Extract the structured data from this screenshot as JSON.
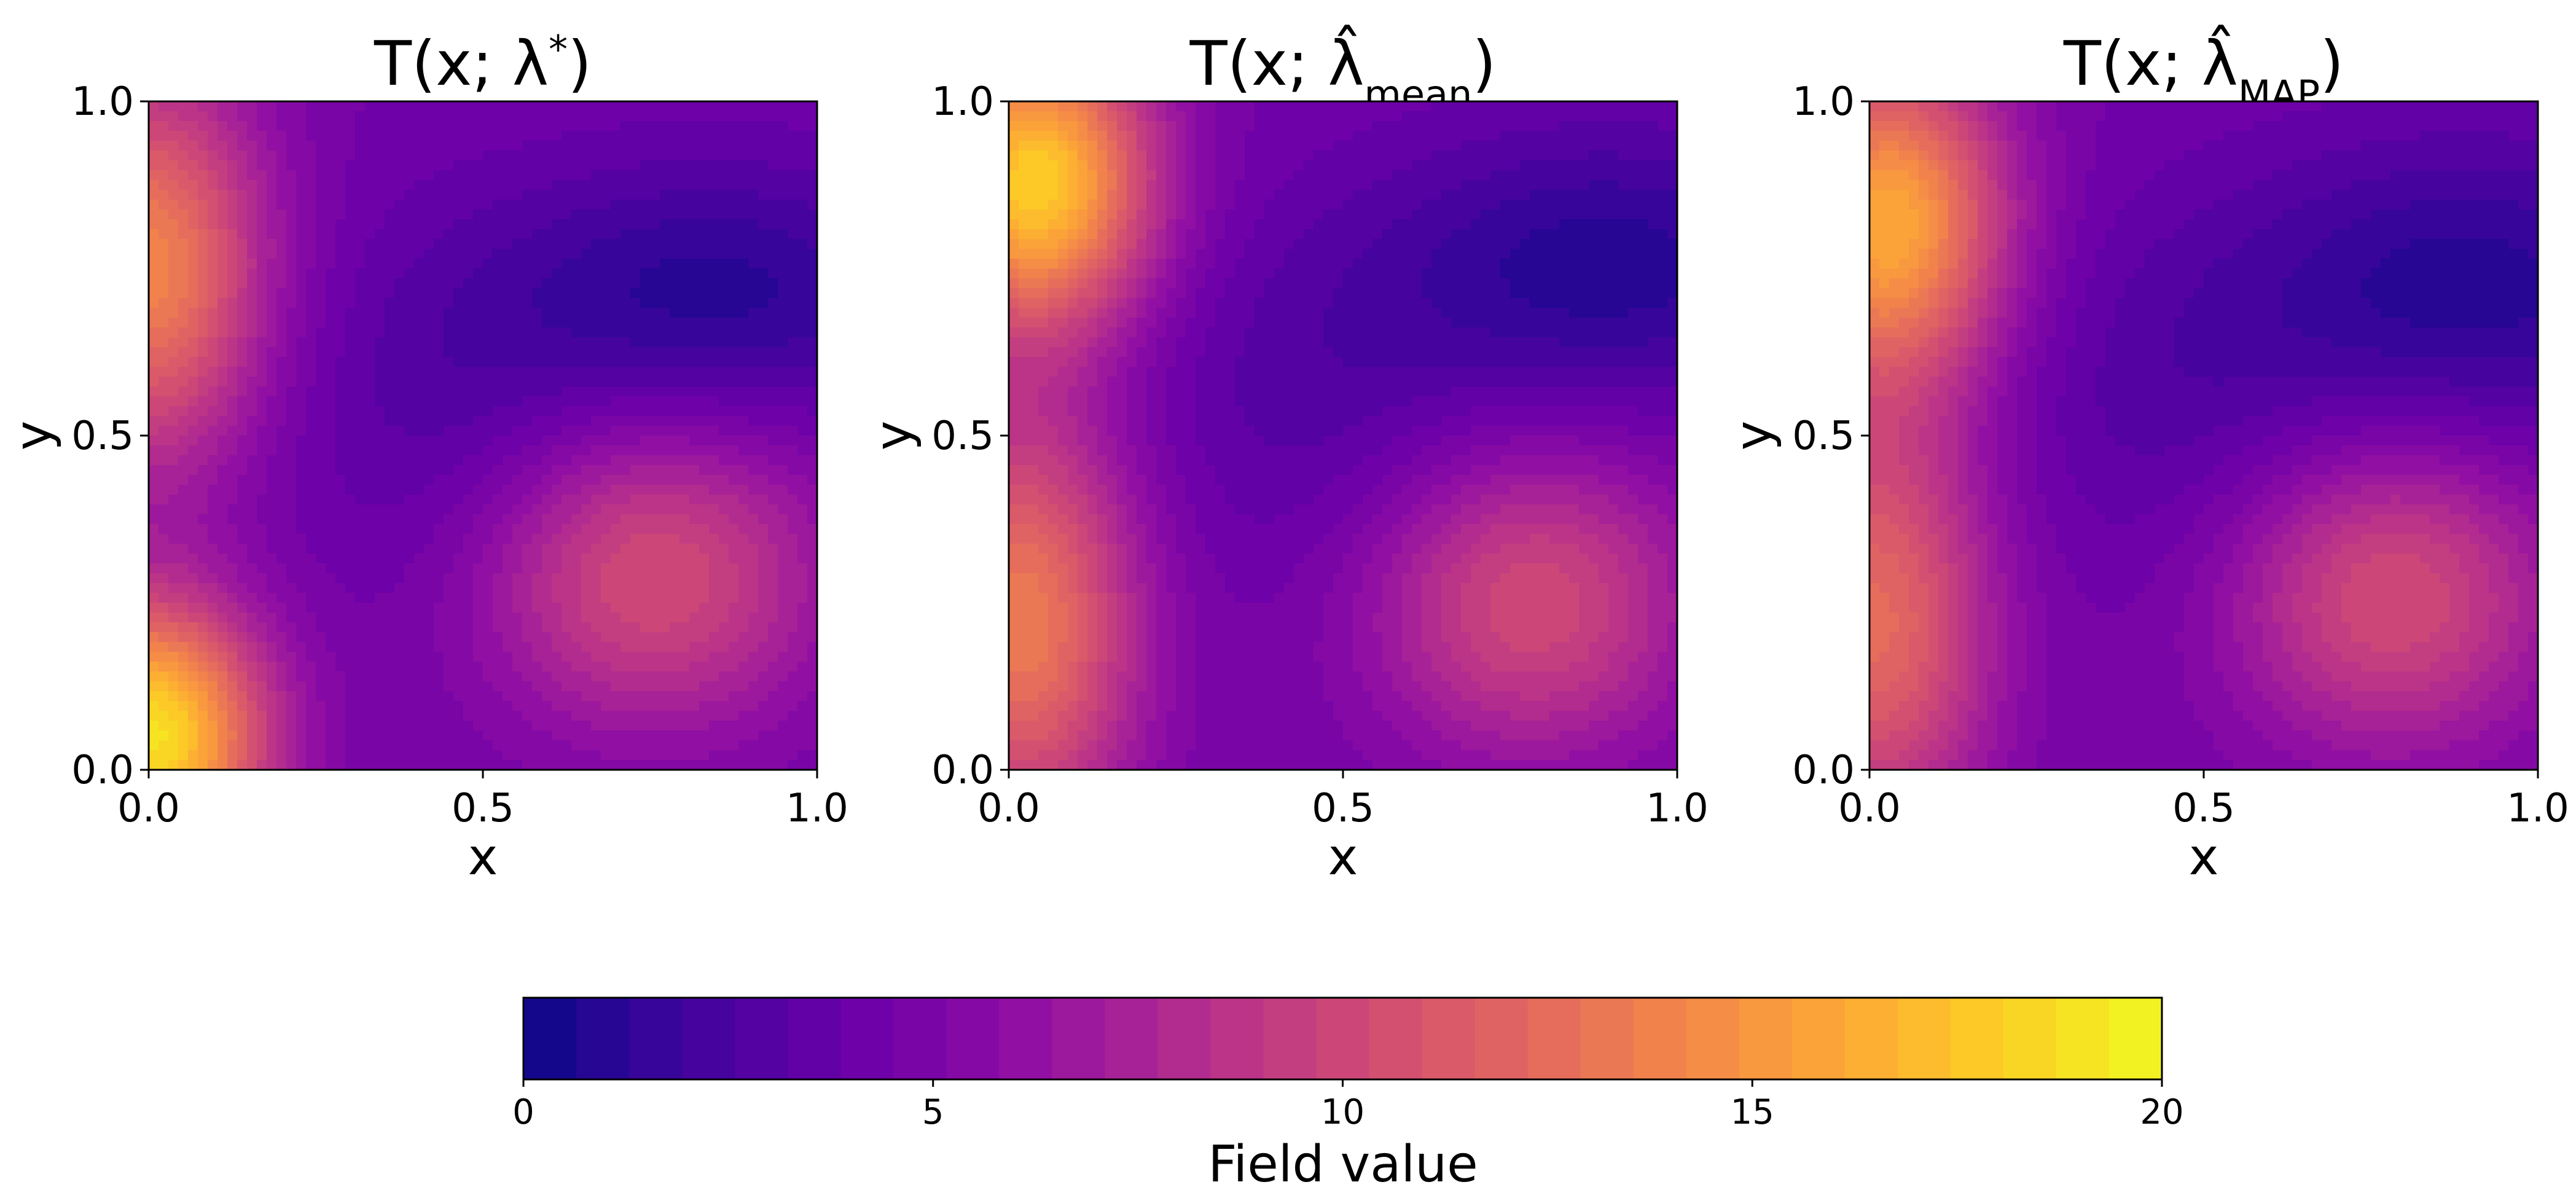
{
  "chart_data": {
    "type": "heatmap",
    "colormap": "plasma",
    "colorbar": {
      "label": "Field value",
      "range": [
        0,
        20
      ],
      "ticks": [
        0,
        5,
        10,
        15,
        20
      ],
      "tick_labels": [
        "0",
        "5",
        "10",
        "15",
        "20"
      ],
      "levels": 31,
      "orientation": "horizontal"
    },
    "panels": [
      {
        "title_base": "T(x; λ",
        "title_script": "*",
        "title_close": ")",
        "script_type": "super",
        "hat": false,
        "xlabel": "x",
        "ylabel": "y",
        "xlim": [
          0,
          1
        ],
        "ylim": [
          0,
          1
        ],
        "x_ticks": [
          "0.0",
          "0.5",
          "1.0"
        ],
        "y_ticks": [
          "0.0",
          "0.5",
          "1.0"
        ],
        "background_value": 4.5,
        "features": [
          {
            "kind": "peak",
            "x": 0.0,
            "y": 0.05,
            "amp": 14.5,
            "sx": 0.12,
            "sy": 0.14
          },
          {
            "kind": "peak",
            "x": 0.0,
            "y": 0.75,
            "amp": 9.5,
            "sx": 0.12,
            "sy": 0.2
          },
          {
            "kind": "peak",
            "x": 0.75,
            "y": 0.29,
            "amp": 6.0,
            "sx": 0.18,
            "sy": 0.16
          },
          {
            "kind": "valley",
            "x": 0.85,
            "y": 0.71,
            "amp": 3.5,
            "sx": 0.25,
            "sy": 0.14
          },
          {
            "kind": "valley",
            "x": 0.45,
            "y": 0.52,
            "amp": 1.5,
            "sx": 0.18,
            "sy": 0.2
          }
        ]
      },
      {
        "title_base": "T(x; λ̂",
        "title_script": "mean",
        "title_close": ")",
        "script_type": "sub",
        "hat": true,
        "xlabel": "x",
        "ylabel": "y",
        "xlim": [
          0,
          1
        ],
        "ylim": [
          0,
          1
        ],
        "x_ticks": [
          "0.0",
          "0.5",
          "1.0"
        ],
        "y_ticks": [
          "0.0",
          "0.5",
          "1.0"
        ],
        "background_value": 4.5,
        "features": [
          {
            "kind": "peak",
            "x": 0.04,
            "y": 0.88,
            "amp": 13.5,
            "sx": 0.12,
            "sy": 0.15
          },
          {
            "kind": "peak",
            "x": 0.02,
            "y": 0.22,
            "amp": 9.0,
            "sx": 0.12,
            "sy": 0.22
          },
          {
            "kind": "peak",
            "x": 0.78,
            "y": 0.25,
            "amp": 5.8,
            "sx": 0.17,
            "sy": 0.16
          },
          {
            "kind": "valley",
            "x": 0.9,
            "y": 0.75,
            "amp": 3.6,
            "sx": 0.25,
            "sy": 0.15
          },
          {
            "kind": "valley",
            "x": 0.45,
            "y": 0.55,
            "amp": 1.5,
            "sx": 0.2,
            "sy": 0.2
          }
        ]
      },
      {
        "title_base": "T(x; λ̂",
        "title_script": "MAP",
        "title_close": ")",
        "script_type": "sub",
        "hat": true,
        "xlabel": "x",
        "ylabel": "y",
        "xlim": [
          0,
          1
        ],
        "ylim": [
          0,
          1
        ],
        "x_ticks": [
          "0.0",
          "0.5",
          "1.0"
        ],
        "y_ticks": [
          "0.0",
          "0.5",
          "1.0"
        ],
        "background_value": 4.5,
        "features": [
          {
            "kind": "peak",
            "x": 0.03,
            "y": 0.82,
            "amp": 11.5,
            "sx": 0.12,
            "sy": 0.17
          },
          {
            "kind": "peak",
            "x": 0.01,
            "y": 0.22,
            "amp": 8.0,
            "sx": 0.12,
            "sy": 0.22
          },
          {
            "kind": "peak",
            "x": 0.78,
            "y": 0.26,
            "amp": 6.0,
            "sx": 0.17,
            "sy": 0.16
          },
          {
            "kind": "valley",
            "x": 0.9,
            "y": 0.72,
            "amp": 3.6,
            "sx": 0.25,
            "sy": 0.16
          },
          {
            "kind": "valley",
            "x": 0.45,
            "y": 0.55,
            "amp": 1.5,
            "sx": 0.2,
            "sy": 0.2
          }
        ]
      }
    ]
  }
}
